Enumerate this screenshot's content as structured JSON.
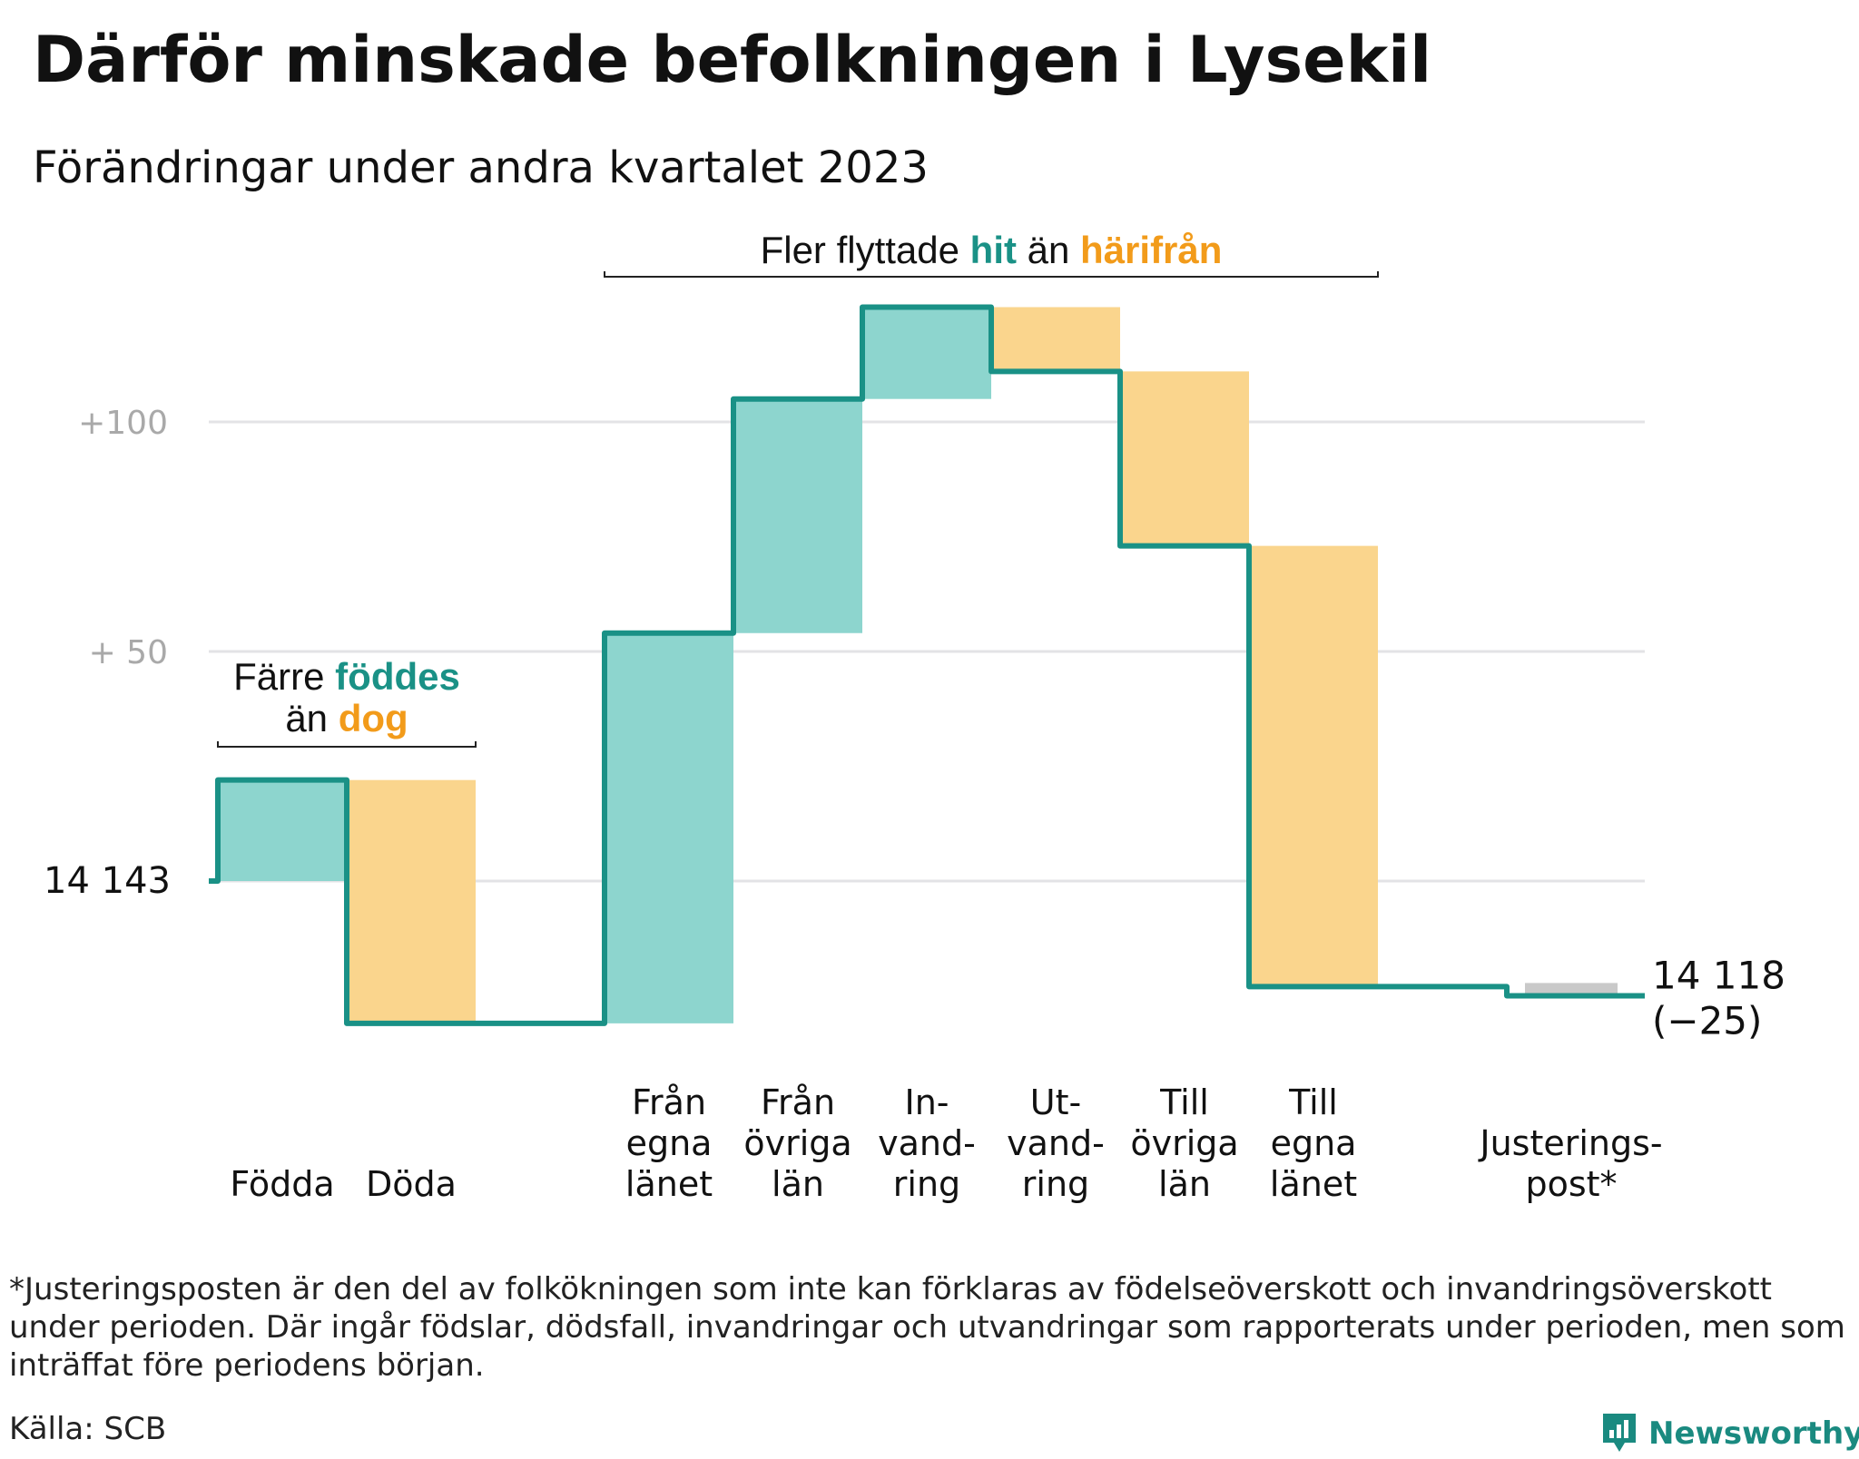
{
  "header": {
    "title": "Därför minskade befolkningen i Lysekil",
    "subtitle": "Förändringar under andra kvartalet 2023"
  },
  "chart_data": {
    "type": "waterfall",
    "start": 14143,
    "end": 14118,
    "ylim": [
      14105,
      14176
    ],
    "yticks": [
      {
        "value": 14243,
        "label": "+100"
      },
      {
        "value": 14193,
        "label": "+  50"
      },
      {
        "value": 14143,
        "label": "14  143"
      }
    ],
    "steps": [
      {
        "label": [
          "Födda"
        ],
        "value": 22,
        "kind": "in"
      },
      {
        "label": [
          "Döda"
        ],
        "value": -53,
        "kind": "out"
      },
      {
        "label": [
          "Från",
          "egna",
          "länet"
        ],
        "value": 85,
        "kind": "in"
      },
      {
        "label": [
          "Från",
          "övriga",
          "län"
        ],
        "value": 51,
        "kind": "in"
      },
      {
        "label": [
          "In-",
          "vand-",
          "ring"
        ],
        "value": 20,
        "kind": "in"
      },
      {
        "label": [
          "Ut-",
          "vand-",
          "ring"
        ],
        "value": -14,
        "kind": "out"
      },
      {
        "label": [
          "Till",
          "övriga",
          "län"
        ],
        "value": -38,
        "kind": "out"
      },
      {
        "label": [
          "Till",
          "egna",
          "länet"
        ],
        "value": -96,
        "kind": "out"
      },
      {
        "label": [
          "Justerings-",
          "post*"
        ],
        "value": -2,
        "kind": "adjust"
      }
    ],
    "end_label": "14 118",
    "end_change": "(−25)",
    "annotation_births": {
      "l1": "Färre ",
      "l1_hl": "föddes",
      "l2": "än ",
      "l2_hl": "dog"
    },
    "annotation_moves": {
      "pre": "Fler flyttade ",
      "hit": "hit",
      "mid": " än ",
      "from": "härifrån"
    },
    "colors": {
      "in": "#8dd5ce",
      "out": "#fad58d",
      "adjust": "#c9c9c9",
      "line": "#1a9186",
      "hl_in": "#1a9186",
      "hl_out": "#f29b1a",
      "grid": "#e3e3e6",
      "tick": "#a9a9a9"
    }
  },
  "footnote": "*Justeringsposten är den del av folkökningen som inte kan förklaras av födelseöverskott och invandringsöverskott under perioden. Där ingår födslar, dödsfall, invandringar och utvandringar som rapporterats under perioden, men som inträffat före periodens början.",
  "source": "Källa: SCB",
  "brand": {
    "name": "Newsworthy",
    "icon": "newsworthy-logo-icon"
  }
}
